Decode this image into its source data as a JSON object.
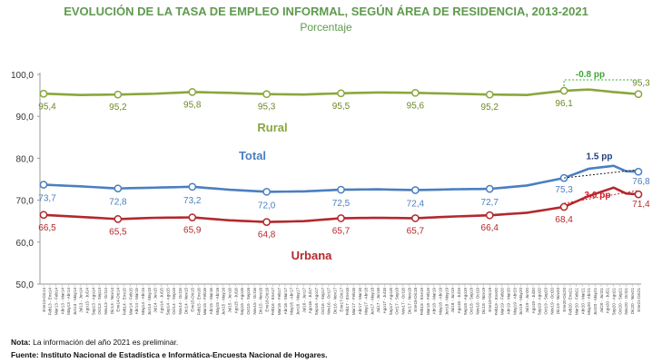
{
  "title": "EVOLUCIÓN DE LA TASA DE EMPLEO INFORMAL, SEGÚN ÁREA DE RESIDENCIA, 2013-2021",
  "subtitle": "Porcentaje",
  "note_label": "Nota:",
  "note_text": " La información del año 2021 es preliminar.",
  "source": "Fuente: Instituto Nacional de Estadística e Informática-Encuesta Nacional de Hogares.",
  "chart_data": {
    "type": "line",
    "ylim": [
      50,
      100
    ],
    "yticks": [
      50,
      60,
      70,
      80,
      90,
      100
    ],
    "ytick_labels": [
      "50,0",
      "60,0",
      "70,0",
      "80,0",
      "90,0",
      "100,0"
    ],
    "grid": false,
    "categories": [
      "Ene13-Dic13",
      "Feb13 - Ene14",
      "Mar13 - Feb14",
      "Abr13 - Mar14",
      "May13 - Abr14",
      "Jun13 - May14",
      "Jul13 - Jun14",
      "Ago13 - Jul14",
      "Sep13 - Ago14",
      "Oct13 - Sep14",
      "Nov13 - Oct14",
      "Dic13 - Nov14",
      "Ene14-Dic14",
      "Feb14 - Ene15",
      "Mar14 - Feb15",
      "Abr14 - Mar15",
      "May14 - Abr15",
      "Jun14 - May15",
      "Jul14 - Jun15",
      "Ago14 - Jul15",
      "Sep14 - Ago15",
      "Oct14 - Sep15",
      "Nov14 - Oct15",
      "Dic14 - Nov15",
      "Ene15-Dic15",
      "Feb15 - Ene16",
      "Mar15 - Feb16",
      "Abr15 - Mar16",
      "May15 - Abr16",
      "Jun15 - May16",
      "Jul15 - Jun16",
      "Ago15 - Jul16",
      "Sep15 - Ago16",
      "Oct15 - Sep16",
      "Nov15 - Oct16",
      "Dic15 - Nov16",
      "Ene16-Dic16",
      "Feb16 - Ene17",
      "Mar16 - Feb17",
      "Abr16 - Mar17",
      "May16 - Abr17",
      "Jun16 - May17",
      "Jul16 - Jun17",
      "Ago16 - Jul17",
      "Sep16 - Ago17",
      "Oct16 - Sep17",
      "Nov16 - Oct17",
      "Dic16 - Nov17",
      "Ene17-Dic17",
      "Feb17 - Ene18",
      "Mar17 - Feb18",
      "Abr17 - Mar18",
      "May17 - Abr18",
      "Jun17 - May18",
      "Jul17 - Jun18",
      "Ago17 - Jul18",
      "Sep17 - Ago18",
      "Oct17 - Sep18",
      "Nov17 - Oct18",
      "Dic17 - Nov18",
      "Ene18-Dic18",
      "Feb18 - Ene19",
      "Mar18 - Feb19",
      "Abr18 - Mar19",
      "May18 - Abr19",
      "Jun18 - May19",
      "Jul18 - Jun19",
      "Ago18 - Jul19",
      "Sep18 - Ago19",
      "Oct18 - Sep19",
      "Nov18 - Oct19",
      "Dic18 - Nov19",
      "Ene19-Dic19",
      "Feb19 - Ene20",
      "Mar19 - Feb20",
      "Abr19 - Mar20",
      "May19 - Abr20",
      "Jun19 - May20",
      "Jul19 - Jun20",
      "Ago19 - Jul20",
      "Sep19 - Ago20",
      "Oct19 - Sep20",
      "Nov19 - Oct20",
      "Dic19 - Nov20",
      "Ene20-Dic20",
      "Feb20 - Ene21",
      "Mar20 - Feb21",
      "Abr20 - Mar21",
      "May20 - Abr21",
      "Jun20 - May21",
      "Jul20 - Jun21",
      "Ago20 - Jul21",
      "Sep20 - Ago21",
      "Oct20 - Sep21",
      "Nov20 - Oct21",
      "Dic20 - Nov21",
      "Ene21-Dic21"
    ],
    "series": [
      {
        "name": "Rural",
        "color": "#8aa63c",
        "keypoints": [
          [
            0,
            95.4
          ],
          [
            6,
            95.1
          ],
          [
            12,
            95.2
          ],
          [
            18,
            95.4
          ],
          [
            24,
            95.8
          ],
          [
            30,
            95.6
          ],
          [
            36,
            95.3
          ],
          [
            42,
            95.2
          ],
          [
            48,
            95.5
          ],
          [
            54,
            95.7
          ],
          [
            60,
            95.6
          ],
          [
            66,
            95.4
          ],
          [
            72,
            95.2
          ],
          [
            78,
            95.1
          ],
          [
            84,
            96.1
          ],
          [
            88,
            96.4
          ],
          [
            92,
            95.8
          ],
          [
            96,
            95.3
          ]
        ],
        "labels": [
          "95,4",
          "95,2",
          "95,8",
          "95,3",
          "95,5",
          "95,6",
          "95,2",
          "96,1",
          "95,3"
        ]
      },
      {
        "name": "Total",
        "color": "#4a7fc1",
        "keypoints": [
          [
            0,
            73.7
          ],
          [
            6,
            73.3
          ],
          [
            12,
            72.8
          ],
          [
            18,
            73.0
          ],
          [
            24,
            73.2
          ],
          [
            30,
            72.5
          ],
          [
            36,
            72.0
          ],
          [
            42,
            72.1
          ],
          [
            48,
            72.5
          ],
          [
            54,
            72.6
          ],
          [
            60,
            72.4
          ],
          [
            66,
            72.6
          ],
          [
            72,
            72.7
          ],
          [
            78,
            73.5
          ],
          [
            84,
            75.3
          ],
          [
            88,
            77.5
          ],
          [
            92,
            78.2
          ],
          [
            94,
            76.9
          ],
          [
            96,
            76.8
          ]
        ],
        "labels": [
          "73,7",
          "72,8",
          "73,2",
          "72,0",
          "72,5",
          "72,4",
          "72,7",
          "75,3",
          "76,8"
        ]
      },
      {
        "name": "Urbana",
        "color": "#b3282d",
        "keypoints": [
          [
            0,
            66.5
          ],
          [
            6,
            66.0
          ],
          [
            12,
            65.5
          ],
          [
            18,
            65.8
          ],
          [
            24,
            65.9
          ],
          [
            30,
            65.2
          ],
          [
            36,
            64.8
          ],
          [
            42,
            65.0
          ],
          [
            48,
            65.7
          ],
          [
            54,
            65.8
          ],
          [
            60,
            65.7
          ],
          [
            66,
            66.1
          ],
          [
            72,
            66.4
          ],
          [
            78,
            67.0
          ],
          [
            84,
            68.4
          ],
          [
            88,
            71.0
          ],
          [
            92,
            73.0
          ],
          [
            94,
            71.6
          ],
          [
            96,
            71.4
          ]
        ],
        "labels": [
          "66,5",
          "65,5",
          "65,9",
          "64,8",
          "65,7",
          "65,7",
          "66,4",
          "68,4",
          "71,4"
        ]
      }
    ],
    "annotations": [
      {
        "text": "-0.8 pp",
        "series": "Rural",
        "color": "#3fa535"
      },
      {
        "text": "1.5 pp",
        "series": "Total",
        "color": "#1f3f7a"
      },
      {
        "text": "3.0 pp",
        "series": "Urbana",
        "color": "#d0202a"
      }
    ]
  }
}
